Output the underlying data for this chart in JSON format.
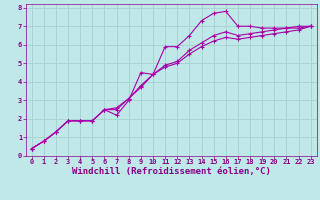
{
  "background_color": "#c0e8e8",
  "grid_color": "#a8d4d4",
  "line_color": "#aa00aa",
  "xlabel": "Windchill (Refroidissement éolien,°C)",
  "xlim": [
    -0.5,
    23.5
  ],
  "ylim": [
    0,
    8.2
  ],
  "xticks": [
    0,
    1,
    2,
    3,
    4,
    5,
    6,
    7,
    8,
    9,
    10,
    11,
    12,
    13,
    14,
    15,
    16,
    17,
    18,
    19,
    20,
    21,
    22,
    23
  ],
  "yticks": [
    0,
    1,
    2,
    3,
    4,
    5,
    6,
    7,
    8
  ],
  "series": [
    {
      "x": [
        0,
        1,
        2,
        3,
        4,
        5,
        6,
        7,
        8,
        9,
        10,
        11,
        12,
        13,
        14,
        15,
        16,
        17,
        18,
        19,
        20,
        21,
        22,
        23
      ],
      "y": [
        0.4,
        0.8,
        1.3,
        1.9,
        1.9,
        1.9,
        2.5,
        2.2,
        3.0,
        4.5,
        4.4,
        5.9,
        5.9,
        6.5,
        7.3,
        7.7,
        7.8,
        7.0,
        7.0,
        6.9,
        6.9,
        6.9,
        7.0,
        7.0
      ]
    },
    {
      "x": [
        0,
        1,
        2,
        3,
        4,
        5,
        6,
        7,
        8,
        9,
        10,
        11,
        12,
        13,
        14,
        15,
        16,
        17,
        18,
        19,
        20,
        21,
        22,
        23
      ],
      "y": [
        0.4,
        0.8,
        1.3,
        1.9,
        1.9,
        1.9,
        2.5,
        2.5,
        3.1,
        3.8,
        4.4,
        4.9,
        5.1,
        5.7,
        6.1,
        6.5,
        6.7,
        6.5,
        6.6,
        6.7,
        6.8,
        6.9,
        6.9,
        7.0
      ]
    },
    {
      "x": [
        0,
        1,
        2,
        3,
        4,
        5,
        6,
        7,
        8,
        9,
        10,
        11,
        12,
        13,
        14,
        15,
        16,
        17,
        18,
        19,
        20,
        21,
        22,
        23
      ],
      "y": [
        0.4,
        0.8,
        1.3,
        1.9,
        1.9,
        1.9,
        2.5,
        2.6,
        3.1,
        3.7,
        4.4,
        4.8,
        5.0,
        5.5,
        5.9,
        6.2,
        6.4,
        6.3,
        6.4,
        6.5,
        6.6,
        6.7,
        6.8,
        7.0
      ]
    }
  ],
  "font_color": "#880088",
  "tick_fontsize": 5.0,
  "label_fontsize": 6.5
}
